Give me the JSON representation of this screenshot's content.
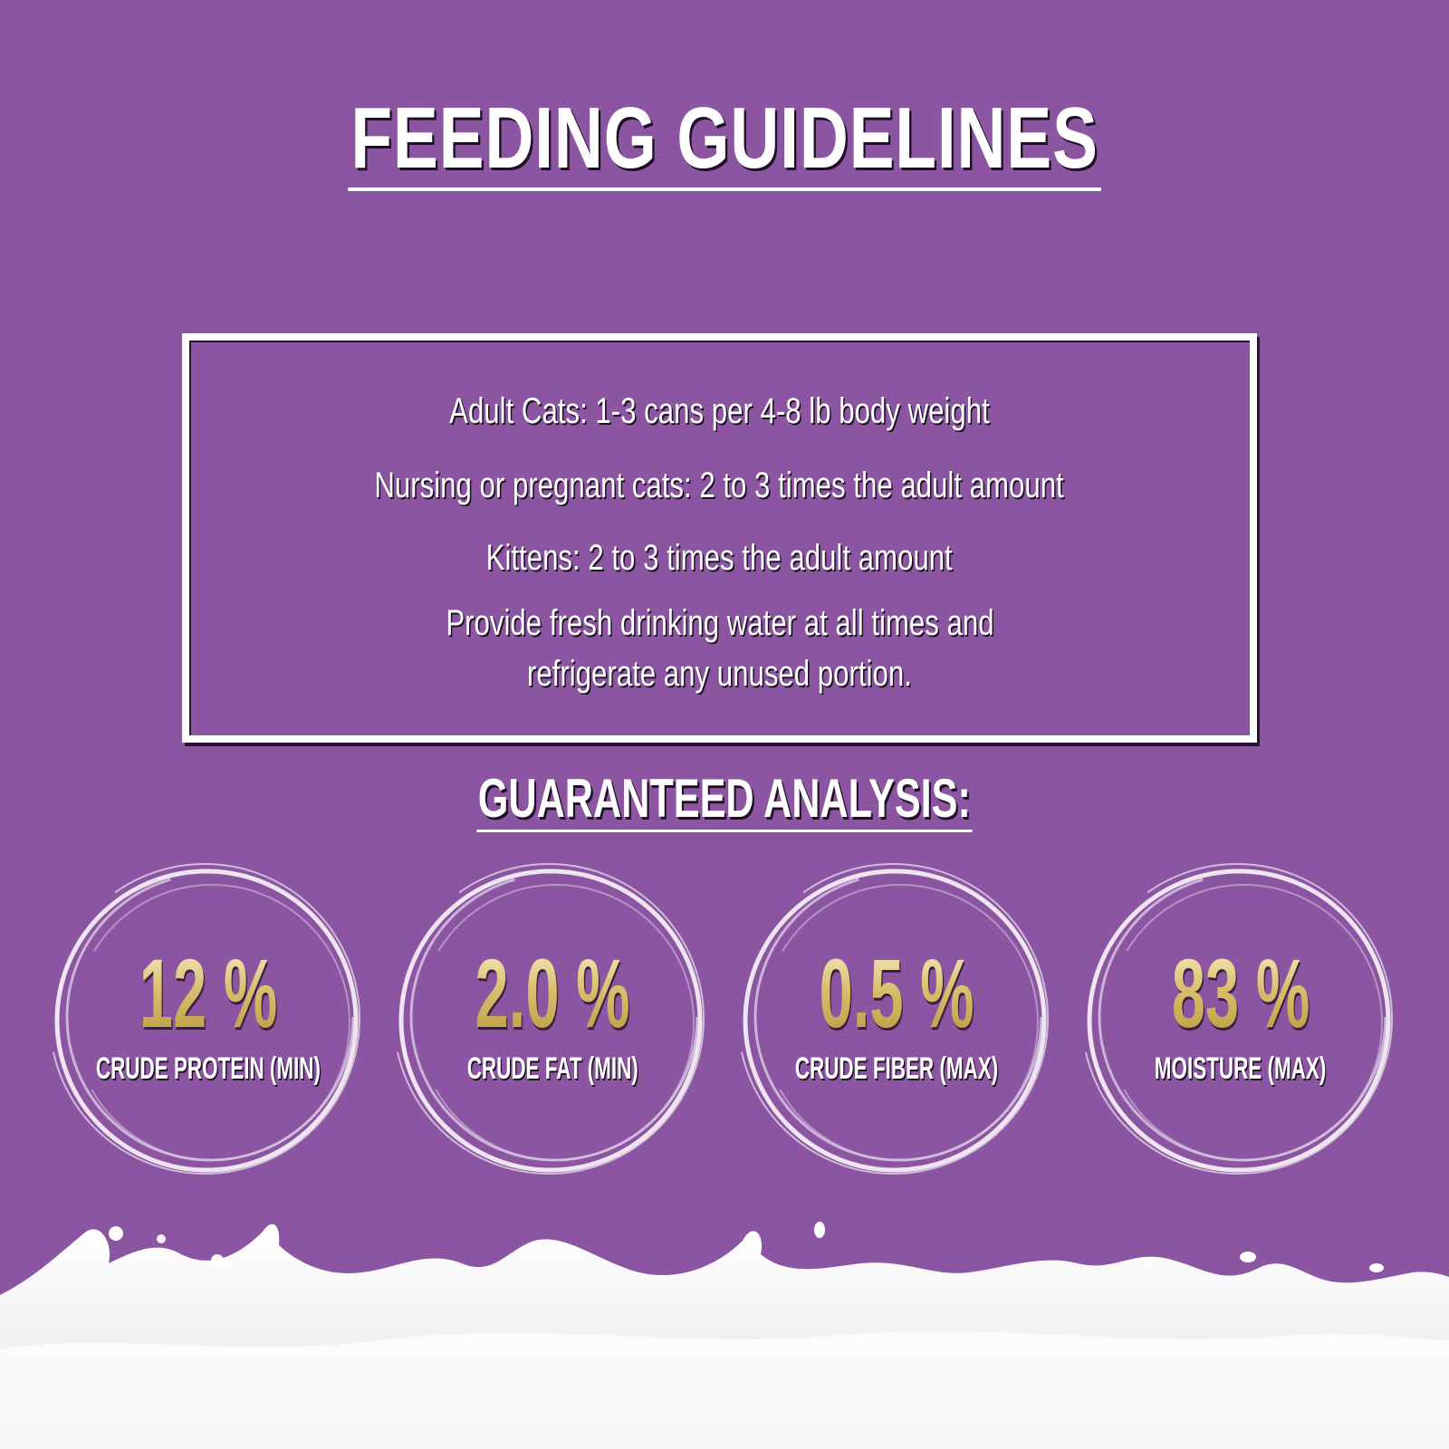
{
  "title": "FEEDING GUIDELINES",
  "guidelines": {
    "adult": "Adult Cats: 1-3 cans per 4-8 lb body weight",
    "nursing": "Nursing or pregnant cats: 2 to 3 times the adult amount",
    "kittens": "Kittens: 2 to 3 times the adult amount",
    "water_line1": "Provide fresh drinking water at all times and",
    "water_line2": "refrigerate any unused portion."
  },
  "analysis": {
    "title": "GUARANTEED ANALYSIS:",
    "items": [
      {
        "value": "12 %",
        "label": "CRUDE PROTEIN (MIN)"
      },
      {
        "value": "2.0 %",
        "label": "CRUDE FAT (MIN)"
      },
      {
        "value": "0.5 %",
        "label": "CRUDE FIBER (MAX)"
      },
      {
        "value": "83 %",
        "label": "MOISTURE (MAX)"
      }
    ]
  },
  "colors": {
    "background": "#8b55a1",
    "gold": "#d9c06e",
    "white": "#ffffff"
  }
}
